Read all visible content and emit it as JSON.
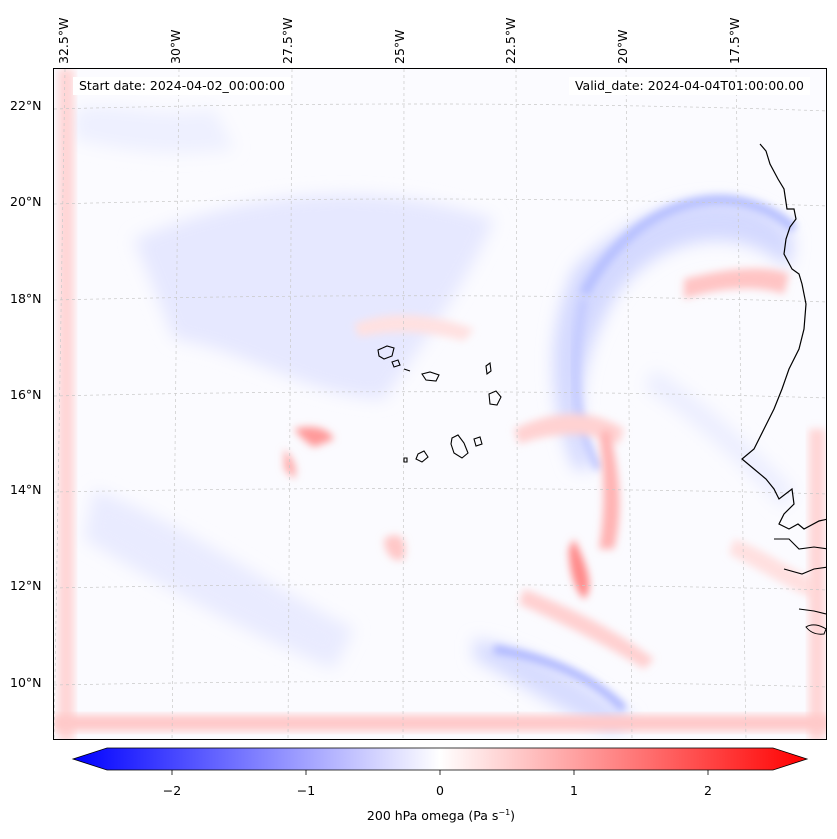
{
  "map": {
    "start_date": "Start date: 2024-04-02_00:00:00",
    "valid_date": "Valid_date: 2024-04-04T01:00:00.00",
    "lon_labels": [
      "32.5°W",
      "30°W",
      "27.5°W",
      "25°W",
      "22.5°W",
      "20°W",
      "17.5°W"
    ],
    "lat_labels": [
      "22°N",
      "20°N",
      "18°N",
      "16°N",
      "14°N",
      "12°N",
      "10°N"
    ],
    "field_colors": {
      "negative": "#0000ff",
      "zero": "#ffffff",
      "positive": "#ff0000"
    }
  },
  "colorbar": {
    "ticks": [
      "−2",
      "−1",
      "0",
      "1",
      "2"
    ],
    "label_main": "200 hPa omega (Pa s",
    "label_sup": "−1",
    "label_end": ")",
    "range": [
      -2.75,
      2.75
    ]
  }
}
